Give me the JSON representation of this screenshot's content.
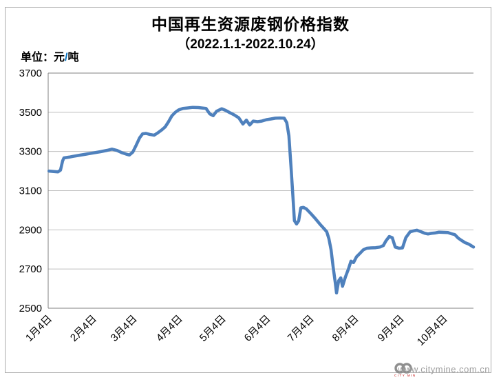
{
  "chart_data": {
    "type": "line",
    "title": "中国再生资源废钢价格指数",
    "subtitle": "（2022.1.1-2022.10.24）",
    "unit_label": {
      "prefix": "单位：元",
      "slash": "/",
      "suffix": "吨"
    },
    "ylim": [
      2500,
      3700
    ],
    "y_ticks": [
      2500,
      2700,
      2900,
      3100,
      3300,
      3500,
      3700
    ],
    "x_ticks": [
      {
        "label": "1月4日",
        "pos": 0.002
      },
      {
        "label": "2月4日",
        "pos": 0.107
      },
      {
        "label": "3月4日",
        "pos": 0.202
      },
      {
        "label": "4月4日",
        "pos": 0.309
      },
      {
        "label": "5月4日",
        "pos": 0.411
      },
      {
        "label": "6月4日",
        "pos": 0.516
      },
      {
        "label": "7月4日",
        "pos": 0.618
      },
      {
        "label": "8月4日",
        "pos": 0.723
      },
      {
        "label": "9月4日",
        "pos": 0.83
      },
      {
        "label": "10月4日",
        "pos": 0.932
      }
    ],
    "grid": true,
    "legend": "none",
    "colors": {
      "line": "#4F81BD",
      "grid": "#BFBFBF",
      "axis": "#808080",
      "text": "#000000",
      "slash": "#0070C0",
      "watermark": "#9E9E9E",
      "logo": "#8F8F8F",
      "logo_caption": "#C00000"
    },
    "series": [
      {
        "name": "废钢价格指数",
        "points": [
          [
            0.002,
            3200
          ],
          [
            0.013,
            3198
          ],
          [
            0.023,
            3196
          ],
          [
            0.029,
            3205
          ],
          [
            0.034,
            3252
          ],
          [
            0.037,
            3267
          ],
          [
            0.049,
            3271
          ],
          [
            0.058,
            3275
          ],
          [
            0.074,
            3281
          ],
          [
            0.091,
            3287
          ],
          [
            0.107,
            3293
          ],
          [
            0.123,
            3299
          ],
          [
            0.139,
            3306
          ],
          [
            0.15,
            3312
          ],
          [
            0.162,
            3305
          ],
          [
            0.173,
            3294
          ],
          [
            0.183,
            3287
          ],
          [
            0.191,
            3282
          ],
          [
            0.199,
            3297
          ],
          [
            0.207,
            3332
          ],
          [
            0.215,
            3370
          ],
          [
            0.222,
            3390
          ],
          [
            0.23,
            3392
          ],
          [
            0.239,
            3387
          ],
          [
            0.249,
            3383
          ],
          [
            0.257,
            3394
          ],
          [
            0.267,
            3410
          ],
          [
            0.275,
            3425
          ],
          [
            0.283,
            3452
          ],
          [
            0.291,
            3482
          ],
          [
            0.299,
            3500
          ],
          [
            0.307,
            3512
          ],
          [
            0.317,
            3520
          ],
          [
            0.327,
            3522
          ],
          [
            0.34,
            3525
          ],
          [
            0.353,
            3524
          ],
          [
            0.362,
            3522
          ],
          [
            0.371,
            3520
          ],
          [
            0.38,
            3492
          ],
          [
            0.388,
            3483
          ],
          [
            0.396,
            3505
          ],
          [
            0.408,
            3518
          ],
          [
            0.417,
            3510
          ],
          [
            0.427,
            3498
          ],
          [
            0.437,
            3487
          ],
          [
            0.448,
            3472
          ],
          [
            0.458,
            3440
          ],
          [
            0.466,
            3460
          ],
          [
            0.474,
            3435
          ],
          [
            0.482,
            3455
          ],
          [
            0.492,
            3452
          ],
          [
            0.502,
            3455
          ],
          [
            0.513,
            3462
          ],
          [
            0.524,
            3466
          ],
          [
            0.534,
            3470
          ],
          [
            0.545,
            3471
          ],
          [
            0.555,
            3470
          ],
          [
            0.561,
            3447
          ],
          [
            0.566,
            3380
          ],
          [
            0.571,
            3220
          ],
          [
            0.576,
            3050
          ],
          [
            0.579,
            2947
          ],
          [
            0.584,
            2930
          ],
          [
            0.589,
            2946
          ],
          [
            0.594,
            3012
          ],
          [
            0.6,
            3015
          ],
          [
            0.607,
            3007
          ],
          [
            0.618,
            2982
          ],
          [
            0.628,
            2958
          ],
          [
            0.639,
            2929
          ],
          [
            0.649,
            2905
          ],
          [
            0.655,
            2890
          ],
          [
            0.66,
            2855
          ],
          [
            0.665,
            2800
          ],
          [
            0.67,
            2710
          ],
          [
            0.675,
            2630
          ],
          [
            0.678,
            2578
          ],
          [
            0.683,
            2640
          ],
          [
            0.688,
            2655
          ],
          [
            0.692,
            2612
          ],
          [
            0.699,
            2660
          ],
          [
            0.706,
            2700
          ],
          [
            0.712,
            2740
          ],
          [
            0.718,
            2733
          ],
          [
            0.725,
            2762
          ],
          [
            0.733,
            2780
          ],
          [
            0.741,
            2798
          ],
          [
            0.749,
            2806
          ],
          [
            0.759,
            2808
          ],
          [
            0.77,
            2809
          ],
          [
            0.78,
            2812
          ],
          [
            0.788,
            2820
          ],
          [
            0.794,
            2843
          ],
          [
            0.802,
            2866
          ],
          [
            0.809,
            2860
          ],
          [
            0.816,
            2812
          ],
          [
            0.825,
            2806
          ],
          [
            0.833,
            2808
          ],
          [
            0.841,
            2860
          ],
          [
            0.851,
            2890
          ],
          [
            0.859,
            2895
          ],
          [
            0.867,
            2898
          ],
          [
            0.877,
            2890
          ],
          [
            0.885,
            2883
          ],
          [
            0.893,
            2879
          ],
          [
            0.901,
            2882
          ],
          [
            0.909,
            2884
          ],
          [
            0.919,
            2888
          ],
          [
            0.93,
            2887
          ],
          [
            0.94,
            2886
          ],
          [
            0.948,
            2880
          ],
          [
            0.956,
            2876
          ],
          [
            0.964,
            2858
          ],
          [
            0.972,
            2846
          ],
          [
            0.98,
            2835
          ],
          [
            0.989,
            2827
          ],
          [
            1.0,
            2812
          ]
        ]
      }
    ]
  },
  "watermark": {
    "url": "www.citymine.com.cn",
    "logo_caption": "CITY MINE"
  }
}
